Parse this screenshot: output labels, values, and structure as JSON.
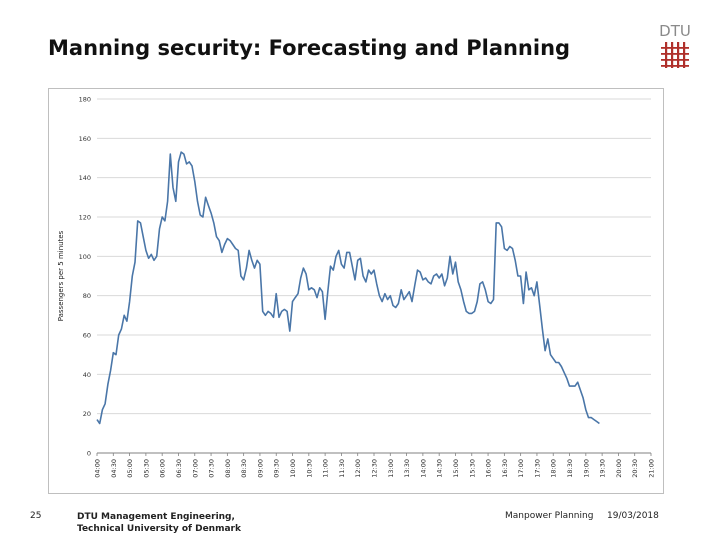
{
  "slide": {
    "title": "Manning security: Forecasting and Planning",
    "logo_text": "DTU",
    "page_number": "25",
    "org_line1": "DTU Management Engineering,",
    "org_line2": "Technical University of Denmark",
    "topic": "Manpower Planning",
    "date": "19/03/2018"
  },
  "colors": {
    "line": "#4a76a8",
    "grid": "#d9d9d9",
    "logo": "#b0302b"
  },
  "chart_data": {
    "type": "line",
    "title": "",
    "xlabel": "",
    "ylabel": "Passengers per 5 minutes",
    "ylim": [
      0,
      180
    ],
    "yticks": [
      0,
      20,
      40,
      60,
      80,
      100,
      120,
      140,
      160,
      180
    ],
    "grid": "horizontal",
    "x_tick_labels": [
      "04:00",
      "04:30",
      "05:00",
      "05:30",
      "06:00",
      "06:30",
      "07:00",
      "07:30",
      "08:00",
      "08:30",
      "09:00",
      "09:30",
      "10:00",
      "10:30",
      "11:00",
      "11:30",
      "12:00",
      "12:30",
      "13:00",
      "13:30",
      "14:00",
      "14:30",
      "15:00",
      "15:30",
      "16:00",
      "16:30",
      "17:00",
      "17:30",
      "18:00",
      "18:30",
      "19:00",
      "19:30",
      "20:00",
      "20:30",
      "21:00"
    ],
    "x_start": "04:00",
    "x_step_minutes": 5,
    "series": [
      {
        "values": [
          17,
          15,
          22,
          25,
          35,
          42,
          51,
          50,
          60,
          63,
          70,
          67,
          77,
          90,
          97,
          118,
          117,
          110,
          103,
          99,
          101,
          98,
          100,
          114,
          120,
          118,
          128,
          152,
          135,
          128,
          148,
          153,
          152,
          147,
          148,
          146,
          138,
          128,
          121,
          120,
          130,
          126,
          122,
          117,
          110,
          108,
          102,
          106,
          109,
          108,
          106,
          104,
          103,
          90,
          88,
          94,
          103,
          98,
          94,
          98,
          96,
          72,
          70,
          72,
          71,
          69,
          81,
          69,
          72,
          73,
          72,
          62,
          77,
          79,
          81,
          89,
          94,
          91,
          83,
          84,
          83,
          79,
          84,
          82,
          68,
          82,
          95,
          93,
          100,
          103,
          96,
          94,
          102,
          102,
          95,
          88,
          98,
          99,
          90,
          87,
          93,
          91,
          93,
          86,
          80,
          77,
          81,
          78,
          80,
          75,
          74,
          76,
          83,
          78,
          80,
          82,
          77,
          85,
          93,
          92,
          88,
          89,
          87,
          86,
          90,
          91,
          89,
          91,
          85,
          89,
          100,
          91,
          97,
          87,
          83,
          77,
          72,
          71,
          71,
          72,
          77,
          86,
          87,
          83,
          77,
          76,
          78,
          117,
          117,
          115,
          104,
          103,
          105,
          104,
          98,
          90,
          90,
          76,
          92,
          83,
          84,
          80,
          87,
          75,
          63,
          52,
          58,
          50,
          48,
          46,
          46,
          44,
          41,
          38,
          34,
          34,
          34,
          36,
          32,
          28,
          22,
          18,
          18,
          17,
          16,
          15
        ]
      }
    ]
  }
}
